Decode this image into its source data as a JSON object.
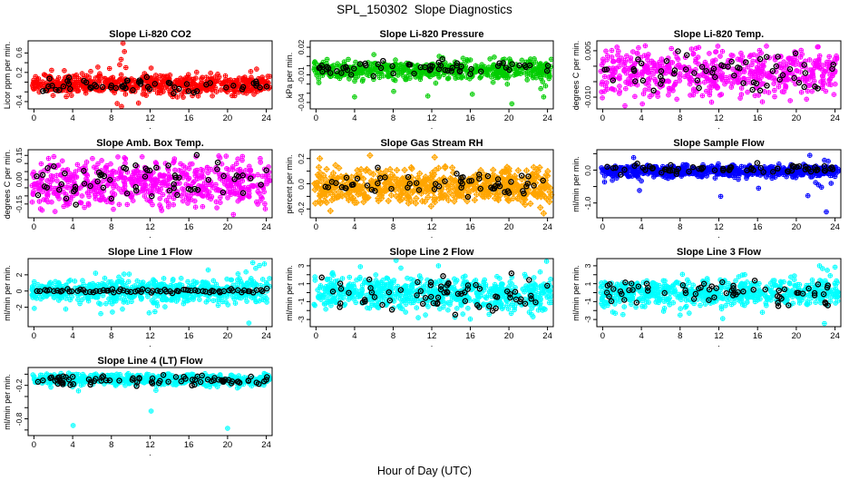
{
  "page": {
    "title": "SPL_150302  Slope Diagnostics",
    "xlabel": "Hour of Day (UTC)"
  },
  "axes": {
    "xticks": [
      "0",
      "4",
      "8",
      "12",
      "16",
      "20",
      "24"
    ],
    "xtick_values": [
      0,
      4,
      8,
      12,
      16,
      20,
      24
    ],
    "xlim": [
      0,
      24
    ],
    "panel_xlab": "."
  },
  "overlay_color": "#000000",
  "chart_data": [
    {
      "type": "scatter",
      "title": "Slope Li-820 CO2",
      "ylabel": "Licor ppm per min.",
      "color": "#ff0000",
      "symbol": "circle-plus",
      "ylim": [
        -0.55,
        0.85
      ],
      "yticks": [
        {
          "v": 0.6,
          "label": "0.6"
        },
        {
          "v": 0.4,
          "label": ""
        },
        {
          "v": 0.2,
          "label": "0.2"
        },
        {
          "v": 0.0,
          "label": ""
        },
        {
          "v": -0.2,
          "label": ""
        },
        {
          "v": -0.4,
          "label": "-0.4"
        }
      ],
      "cloud": {
        "n": 620,
        "center": -0.05,
        "sd": 0.1,
        "ymin": -0.34,
        "ymax": 0.27,
        "seed": 11
      },
      "outliers": [
        [
          9.2,
          0.8
        ],
        [
          9.35,
          0.63
        ],
        [
          9.0,
          0.47
        ],
        [
          8.85,
          0.36
        ],
        [
          9.5,
          0.3
        ],
        [
          6.6,
          0.31
        ],
        [
          7.8,
          0.28
        ],
        [
          12.1,
          0.29
        ],
        [
          9.05,
          -0.5
        ],
        [
          8.6,
          -0.44
        ],
        [
          10.8,
          -0.43
        ],
        [
          23.0,
          0.27
        ]
      ],
      "overlay": {
        "n": 58,
        "center": -0.07,
        "sd": 0.085,
        "ymin": -0.3,
        "ymax": 0.22,
        "seed": 12,
        "mode": "scatter"
      }
    },
    {
      "type": "scatter",
      "title": "Slope Li-820 Pressure",
      "ylabel": "kPa per min.",
      "color": "#00cd00",
      "symbol": "circle-plus",
      "ylim": [
        -0.047,
        0.027
      ],
      "yticks": [
        {
          "v": 0.02,
          "label": "0.02"
        },
        {
          "v": 0.01,
          "label": ""
        },
        {
          "v": 0.0,
          "label": ""
        },
        {
          "v": -0.01,
          "label": "-0.01"
        },
        {
          "v": -0.02,
          "label": ""
        },
        {
          "v": -0.03,
          "label": ""
        },
        {
          "v": -0.04,
          "label": "-0.04"
        }
      ],
      "cloud": {
        "n": 520,
        "center": -0.004,
        "sd": 0.0055,
        "ymin": -0.0215,
        "ymax": 0.0125,
        "seed": 21
      },
      "outliers": [
        [
          4.0,
          -0.034
        ],
        [
          11.6,
          -0.033
        ],
        [
          16.2,
          -0.031
        ],
        [
          8.05,
          -0.028
        ],
        [
          20.3,
          -0.0415
        ],
        [
          23.6,
          -0.034
        ],
        [
          23.3,
          -0.025
        ],
        [
          0.3,
          -0.0185
        ],
        [
          23.8,
          -0.022
        ]
      ],
      "overlay": {
        "n": 62,
        "center": -0.0015,
        "sd": 0.005,
        "ymin": -0.019,
        "ymax": 0.013,
        "seed": 22,
        "mode": "scatter"
      }
    },
    {
      "type": "scatter",
      "title": "Slope Li-820 Temp.",
      "ylabel": "degrees C per min.",
      "color": "#ff00ff",
      "symbol": "circle-plus",
      "ylim": [
        -0.0138,
        0.0082
      ],
      "yticks": [
        {
          "v": 0.005,
          "label": "0.005"
        },
        {
          "v": 0.0,
          "label": ""
        },
        {
          "v": -0.005,
          "label": ""
        },
        {
          "v": -0.01,
          "label": "-0.010"
        }
      ],
      "cloud": {
        "n": 560,
        "center": -0.0018,
        "sd": 0.0042,
        "ymin": -0.0118,
        "ymax": 0.0068,
        "seed": 31
      },
      "outliers": [
        [
          2.3,
          -0.0128
        ],
        [
          4.1,
          -0.0122
        ]
      ],
      "overlay": {
        "n": 60,
        "center": -0.002,
        "sd": 0.0038,
        "ymin": -0.0105,
        "ymax": 0.0062,
        "seed": 32,
        "mode": "scatter"
      }
    },
    {
      "type": "scatter",
      "title": "Slope Amb. Box Temp.",
      "ylabel": "degrees C per min.",
      "color": "#ff00ff",
      "symbol": "circle-plus",
      "ylim": [
        -0.235,
        0.185
      ],
      "yticks": [
        {
          "v": 0.15,
          "label": "0.15"
        },
        {
          "v": 0.1,
          "label": ""
        },
        {
          "v": 0.05,
          "label": ""
        },
        {
          "v": 0.0,
          "label": "0.00"
        },
        {
          "v": -0.05,
          "label": ""
        },
        {
          "v": -0.1,
          "label": ""
        },
        {
          "v": -0.15,
          "label": "-0.15"
        }
      ],
      "cloud": {
        "n": 620,
        "center": -0.02,
        "sd": 0.078,
        "ymin": -0.205,
        "ymax": 0.165,
        "seed": 41
      },
      "outliers": [
        [
          20.6,
          -0.215
        ],
        [
          13.2,
          -0.19
        ],
        [
          23.9,
          -0.18
        ]
      ],
      "overlay": {
        "n": 64,
        "center": -0.02,
        "sd": 0.07,
        "ymin": -0.185,
        "ymax": 0.155,
        "seed": 42,
        "mode": "scatter"
      }
    },
    {
      "type": "scatter",
      "title": "Slope Gas Stream RH",
      "ylabel": "percent per min.",
      "color": "#ffa500",
      "symbol": "diamond-plus",
      "ylim": [
        -0.27,
        0.27
      ],
      "yticks": [
        {
          "v": 0.2,
          "label": "0.2"
        },
        {
          "v": 0.1,
          "label": ""
        },
        {
          "v": 0.0,
          "label": "0.0"
        },
        {
          "v": -0.1,
          "label": ""
        },
        {
          "v": -0.2,
          "label": "-0.2"
        }
      ],
      "cloud": {
        "n": 600,
        "center": -0.02,
        "sd": 0.065,
        "ymin": -0.205,
        "ymax": 0.185,
        "seed": 51
      },
      "outliers": [
        [
          23.6,
          -0.235
        ],
        [
          5.6,
          0.225
        ],
        [
          1.5,
          -0.215
        ],
        [
          12.3,
          0.21
        ],
        [
          0.4,
          0.2
        ]
      ],
      "overlay": {
        "n": 60,
        "center": -0.01,
        "sd": 0.05,
        "ymin": -0.17,
        "ymax": 0.14,
        "seed": 52,
        "mode": "scatter"
      }
    },
    {
      "type": "scatter",
      "title": "Slope Sample Flow",
      "ylabel": "ml/min per min.",
      "color": "#0000ff",
      "symbol": "circle-plus",
      "ylim": [
        -1.45,
        0.62
      ],
      "yticks": [
        {
          "v": 0.5,
          "label": ""
        },
        {
          "v": 0.0,
          "label": "0.0"
        },
        {
          "v": -0.5,
          "label": ""
        },
        {
          "v": -1.0,
          "label": "-1.0"
        }
      ],
      "cloud": {
        "n": 700,
        "center": -0.03,
        "sd": 0.085,
        "ymin": -0.3,
        "ymax": 0.27,
        "seed": 61
      },
      "outliers": [
        [
          3.2,
          0.38
        ],
        [
          21.4,
          0.45
        ],
        [
          22.9,
          0.3
        ],
        [
          23.3,
          0.27
        ],
        [
          3.8,
          -0.62
        ],
        [
          12.2,
          -0.8
        ],
        [
          21.2,
          -0.78
        ],
        [
          23.1,
          -1.27
        ],
        [
          16.1,
          -0.55
        ],
        [
          22.6,
          -0.52
        ],
        [
          22.3,
          -0.45
        ],
        [
          23.6,
          -0.4
        ],
        [
          22.0,
          -0.38
        ],
        [
          0.2,
          -0.36
        ],
        [
          1.0,
          -0.31
        ],
        [
          4.0,
          -0.33
        ]
      ],
      "overlay": {
        "n": 66,
        "center": 0.03,
        "sd": 0.075,
        "ymin": -0.25,
        "ymax": 0.26,
        "seed": 62,
        "mode": "scatter"
      }
    },
    {
      "type": "scatter",
      "title": "Slope Line 1 Flow",
      "ylabel": "ml/min per min.",
      "color": "#00ffff",
      "symbol": "circle-plus",
      "ylim": [
        -4.4,
        4.0
      ],
      "yticks": [
        {
          "v": 2,
          "label": "2"
        },
        {
          "v": 0,
          "label": "0"
        },
        {
          "v": -2,
          "label": "-2"
        }
      ],
      "cloud": {
        "n": 640,
        "center": 0,
        "sd": 0.75,
        "ymin": -2.45,
        "ymax": 2.45,
        "seed": 71
      },
      "outliers": [
        [
          22.6,
          3.5
        ],
        [
          23.3,
          3.15
        ],
        [
          22.9,
          2.8
        ],
        [
          21.9,
          2.35
        ],
        [
          23.8,
          3.35
        ],
        [
          22.2,
          -3.95
        ],
        [
          6.9,
          -2.8
        ],
        [
          11.9,
          -2.7
        ],
        [
          12.5,
          -2.55
        ],
        [
          8.1,
          -2.6
        ],
        [
          18.0,
          2.6
        ]
      ],
      "overlay": {
        "n": 72,
        "center": 0,
        "sd": 0.13,
        "ymin": -0.5,
        "ymax": 0.5,
        "seed": 72,
        "mode": "line"
      }
    },
    {
      "type": "scatter",
      "title": "Slope Line 2 Flow",
      "ylabel": "ml/min per min.",
      "color": "#00ffff",
      "symbol": "circle-plus",
      "ylim": [
        -3.8,
        3.8
      ],
      "yticks": [
        {
          "v": 3,
          "label": "3"
        },
        {
          "v": 2,
          "label": ""
        },
        {
          "v": 1,
          "label": "1"
        },
        {
          "v": 0,
          "label": ""
        },
        {
          "v": -1,
          "label": "-1"
        },
        {
          "v": -2,
          "label": ""
        },
        {
          "v": -3,
          "label": "-3"
        }
      ],
      "cloud": {
        "n": 640,
        "center": -0.1,
        "sd": 0.9,
        "ymin": -2.6,
        "ymax": 2.7,
        "seed": 81
      },
      "outliers": [
        [
          8.3,
          3.6
        ],
        [
          23.9,
          3.5
        ],
        [
          4.6,
          2.9
        ],
        [
          8.8,
          2.75
        ],
        [
          12.7,
          3.0
        ],
        [
          16.0,
          -2.95
        ],
        [
          10.6,
          -2.8
        ],
        [
          22.5,
          -2.7
        ],
        [
          14.4,
          -2.75
        ]
      ],
      "overlay": {
        "n": 70,
        "center": -0.15,
        "sd": 1.0,
        "ymin": -2.7,
        "ymax": 2.3,
        "seed": 82,
        "mode": "scatter"
      }
    },
    {
      "type": "scatter",
      "title": "Slope Line 3 Flow",
      "ylabel": "ml/min per min.",
      "color": "#00ffff",
      "symbol": "circle-plus",
      "ylim": [
        -3.8,
        3.8
      ],
      "yticks": [
        {
          "v": 3,
          "label": "3"
        },
        {
          "v": 2,
          "label": ""
        },
        {
          "v": 1,
          "label": "1"
        },
        {
          "v": 0,
          "label": ""
        },
        {
          "v": -1,
          "label": "-1"
        },
        {
          "v": -2,
          "label": ""
        },
        {
          "v": -3,
          "label": "-3"
        }
      ],
      "cloud": {
        "n": 600,
        "center": 0,
        "sd": 0.75,
        "ymin": -2.35,
        "ymax": 2.35,
        "seed": 91
      },
      "outliers": [
        [
          22.4,
          3.0
        ],
        [
          22.7,
          2.7
        ],
        [
          23.2,
          2.5
        ],
        [
          24.0,
          2.85
        ],
        [
          8.0,
          -2.5
        ],
        [
          12.4,
          -2.9
        ],
        [
          22.9,
          -3.45
        ],
        [
          16.5,
          -2.2
        ],
        [
          1.3,
          -2.3
        ],
        [
          2.1,
          -2.45
        ],
        [
          23.5,
          1.9
        ]
      ],
      "overlay": {
        "n": 66,
        "center": 0.15,
        "sd": 0.75,
        "ymin": -1.8,
        "ymax": 1.6,
        "seed": 92,
        "mode": "scatter"
      }
    },
    {
      "type": "scatter",
      "title": "Slope Line 4 (LT) Flow",
      "ylabel": "ml/min per min.",
      "color": "#00ffff",
      "symbol": "circle-plus",
      "ylim": [
        -1.1,
        0.12
      ],
      "yticks": [
        {
          "v": 0.0,
          "label": ""
        },
        {
          "v": -0.2,
          "label": "-0.2"
        },
        {
          "v": -0.4,
          "label": ""
        },
        {
          "v": -0.6,
          "label": ""
        },
        {
          "v": -0.8,
          "label": "-0.8"
        },
        {
          "v": -1.0,
          "label": ""
        }
      ],
      "cloud": {
        "n": 520,
        "center": -0.09,
        "sd": 0.055,
        "ymin": -0.27,
        "ymax": 0.02,
        "seed": 101
      },
      "outliers": [
        [
          4.05,
          -0.92
        ],
        [
          12.1,
          -0.66
        ],
        [
          20.0,
          -0.97
        ],
        [
          4.6,
          -0.3
        ],
        [
          12.6,
          -0.29
        ]
      ],
      "overlay": {
        "n": 78,
        "center": -0.1,
        "sd": 0.05,
        "ymin": -0.24,
        "ymax": 0.0,
        "seed": 102,
        "mode": "scatter"
      }
    }
  ]
}
